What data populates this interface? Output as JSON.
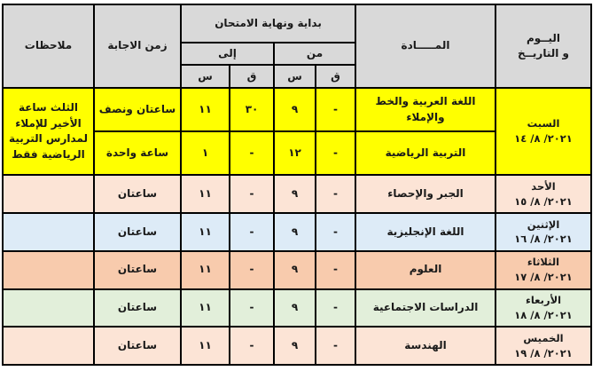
{
  "header": {
    "day_date": [
      "اليــوم",
      "و التاريــخ"
    ],
    "subject": "المـــــادة",
    "exam_period": "بداية ونهاية الامتحان",
    "from": "من",
    "to": "إلى",
    "minute": "ق",
    "hour": "س",
    "duration": "زمن الاجابة",
    "notes": "ملاحظات"
  },
  "colors": {
    "header": "#d9d9d9",
    "yellow": "#ffff00",
    "peach": "#fce4d6",
    "blue": "#ddebf7",
    "orange": "#f8cbad",
    "green": "#e2efda"
  },
  "saturday": {
    "day": "السبت",
    "date": "٢٠٢١/ ٨/ ١٤",
    "notes": "الثلث ساعة الأخير للإملاء لمدارس التربية الرياضية فقط",
    "rows": [
      {
        "subject": "اللغة العربية والخط والإملاء",
        "from_q": "-",
        "from_s": "٩",
        "to_q": "٣٠",
        "to_s": "١١",
        "duration": "ساعتان ونصف"
      },
      {
        "subject": "التربية الرياضية",
        "from_q": "-",
        "from_s": "١٢",
        "to_q": "-",
        "to_s": "١",
        "duration": "ساعة واحدة"
      }
    ]
  },
  "rows": [
    {
      "day": "الأحد",
      "date": "٢٠٢١/ ٨/ ١٥",
      "subject": "الجبر والإحصاء",
      "from_q": "-",
      "from_s": "٩",
      "to_q": "-",
      "to_s": "١١",
      "duration": "ساعتان",
      "notes": ""
    },
    {
      "day": "الإثنين",
      "date": "٢٠٢١/ ٨/ ١٦",
      "subject": "اللغة الإنجليزية",
      "from_q": "-",
      "from_s": "٩",
      "to_q": "-",
      "to_s": "١١",
      "duration": "ساعتان",
      "notes": ""
    },
    {
      "day": "الثلاثاء",
      "date": "٢٠٢١/ ٨/ ١٧",
      "subject": "العلوم",
      "from_q": "-",
      "from_s": "٩",
      "to_q": "-",
      "to_s": "١١",
      "duration": "ساعتان",
      "notes": ""
    },
    {
      "day": "الأربعاء",
      "date": "٢٠٢١/ ٨/ ١٨",
      "subject": "الدراسات الاجتماعية",
      "from_q": "-",
      "from_s": "٩",
      "to_q": "-",
      "to_s": "١١",
      "duration": "ساعتان",
      "notes": ""
    },
    {
      "day": "الخميس",
      "date": "٢٠٢١/ ٨/ ١٩",
      "subject": "الهندسة",
      "from_q": "-",
      "from_s": "٩",
      "to_q": "-",
      "to_s": "١١",
      "duration": "ساعتان",
      "notes": ""
    }
  ]
}
